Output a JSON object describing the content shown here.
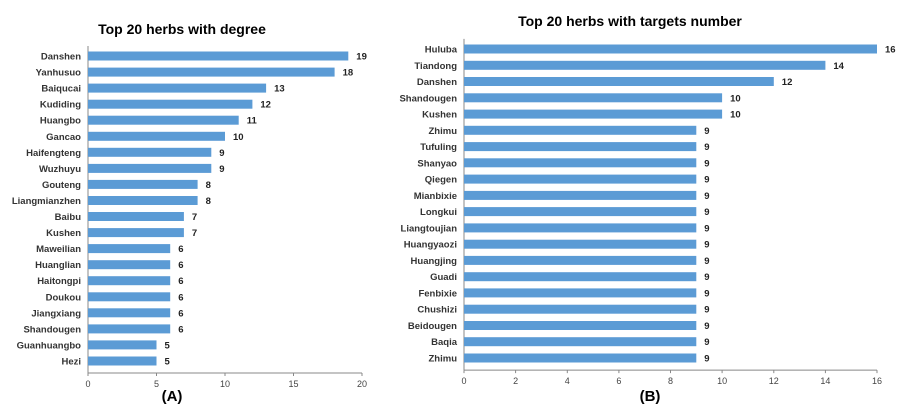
{
  "chart_data": [
    {
      "type": "bar",
      "orientation": "horizontal",
      "title": "Top 20 herbs with degree",
      "panel_label": "(A)",
      "categories": [
        "Danshen",
        "Yanhusuo",
        "Baiqucai",
        "Kudiding",
        "Huangbo",
        "Gancao",
        "Haifengteng",
        "Wuzhuyu",
        "Gouteng",
        "Liangmianzhen",
        "Baibu",
        "Kushen",
        "Maweilian",
        "Huanglian",
        "Haitongpi",
        "Doukou",
        "Jiangxiang",
        "Shandougen",
        "Guanhuangbo",
        "Hezi"
      ],
      "values": [
        19,
        18,
        13,
        12,
        11,
        10,
        9,
        9,
        8,
        8,
        7,
        7,
        6,
        6,
        6,
        6,
        6,
        6,
        5,
        5
      ],
      "xlim": [
        0,
        20
      ],
      "xticks": [
        "0",
        "5",
        "10",
        "15",
        "20"
      ],
      "bar_color": "#5b9bd5",
      "grid": false
    },
    {
      "type": "bar",
      "orientation": "horizontal",
      "title": "Top 20 herbs with targets number",
      "panel_label": "(B)",
      "categories": [
        "Huluba",
        "Tiandong",
        "Danshen",
        "Shandougen",
        "Kushen",
        "Zhimu",
        "Tufuling",
        "Shanyao",
        "Qiegen",
        "Mianbixie",
        "Longkui",
        "Liangtoujian",
        "Huangyaozi",
        "Huangjing",
        "Guadi",
        "Fenbixie",
        "Chushizi",
        "Beidougen",
        "Baqia",
        "Zhimu"
      ],
      "values": [
        16,
        14,
        12,
        10,
        10,
        9,
        9,
        9,
        9,
        9,
        9,
        9,
        9,
        9,
        9,
        9,
        9,
        9,
        9,
        9
      ],
      "xlim": [
        0,
        16
      ],
      "xticks": [
        "0",
        "2",
        "4",
        "6",
        "8",
        "10",
        "12",
        "14",
        "16"
      ],
      "bar_color": "#5b9bd5",
      "grid": false
    }
  ]
}
